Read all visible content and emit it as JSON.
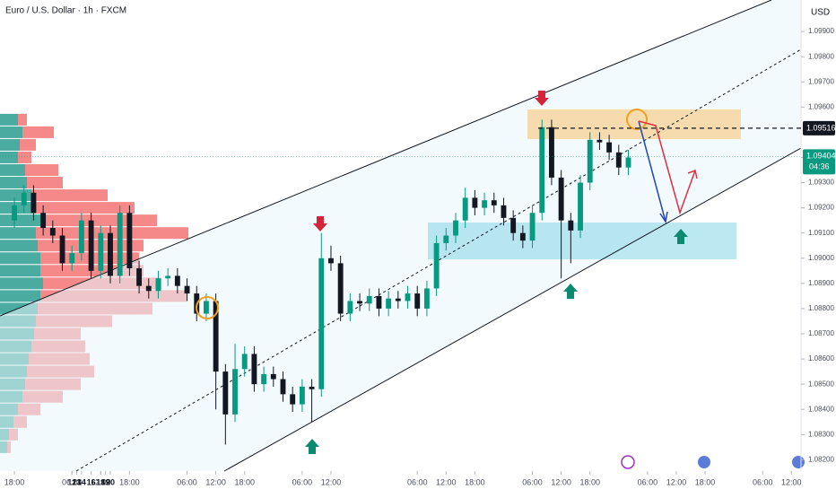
{
  "chart_data": {
    "type": "candlestick",
    "title": "Euro / U.S. Dollar · 1h · FXCM",
    "currency": "USD",
    "up_color": "#089981",
    "down_color": "#131722",
    "x": [
      0,
      2,
      4,
      6,
      8,
      10,
      12,
      14,
      16,
      18,
      20,
      22,
      24,
      26,
      28,
      30,
      32,
      34,
      36,
      38,
      40,
      42,
      44,
      46,
      48,
      50,
      52,
      54,
      56,
      58,
      60,
      62,
      64,
      66,
      68,
      70,
      72,
      74,
      76,
      78,
      80,
      82,
      84,
      86,
      88,
      90,
      92,
      94,
      96,
      98,
      100,
      102,
      104,
      106,
      108,
      110,
      112,
      114,
      116,
      118,
      120,
      122,
      124,
      126,
      128
    ],
    "open": [
      1.0915,
      1.0921,
      1.0926,
      1.0918,
      1.0912,
      1.0909,
      1.0898,
      1.0902,
      1.0915,
      1.0895,
      1.091,
      1.0893,
      1.0918,
      1.0896,
      1.0889,
      1.0887,
      1.0892,
      1.0893,
      1.0889,
      1.0886,
      1.0878,
      1.0883,
      1.0855,
      1.0838,
      1.0856,
      1.0862,
      1.085,
      1.0854,
      1.0852,
      1.0846,
      1.0842,
      1.0849,
      1.0848,
      1.09,
      1.0898,
      1.0878,
      1.0883,
      1.0882,
      1.0885,
      1.088,
      1.0884,
      1.0883,
      1.0886,
      1.088,
      1.0888,
      1.0906,
      1.0909,
      1.0915,
      1.0924,
      1.092,
      1.0923,
      1.0921,
      1.0916,
      1.091,
      1.0907,
      1.0918,
      1.0952,
      1.0932,
      1.0915,
      1.0911,
      1.093,
      1.0947,
      1.0946,
      1.0942,
      1.0936
    ],
    "high": [
      1.0924,
      1.0929,
      1.0929,
      1.0921,
      1.0915,
      1.0912,
      1.0905,
      1.0918,
      1.0918,
      1.0913,
      1.0913,
      1.0921,
      1.0921,
      1.0899,
      1.0892,
      1.0895,
      1.0896,
      1.0896,
      1.0892,
      1.0889,
      1.0886,
      1.0886,
      1.0858,
      1.0866,
      1.0865,
      1.0865,
      1.0857,
      1.0857,
      1.0855,
      1.0849,
      1.0852,
      1.0852,
      1.091,
      1.0905,
      1.0901,
      1.0886,
      1.0886,
      1.0888,
      1.0888,
      1.0887,
      1.0887,
      1.0889,
      1.0889,
      1.0891,
      1.0909,
      1.0912,
      1.0918,
      1.0928,
      1.0927,
      1.0926,
      1.0926,
      1.0924,
      1.0919,
      1.0913,
      1.0921,
      1.0955,
      1.0955,
      1.0935,
      1.0918,
      1.0933,
      1.095,
      1.095,
      1.0949,
      1.0945,
      1.0943
    ],
    "low": [
      1.0912,
      1.0918,
      1.0915,
      1.0909,
      1.0906,
      1.0895,
      1.0895,
      1.0899,
      1.0892,
      1.0892,
      1.089,
      1.089,
      1.0893,
      1.0886,
      1.0884,
      1.0884,
      1.0889,
      1.0886,
      1.0883,
      1.0875,
      1.0875,
      1.084,
      1.0826,
      1.0835,
      1.0853,
      1.0847,
      1.0847,
      1.0849,
      1.0843,
      1.0839,
      1.0839,
      1.0835,
      1.0845,
      1.0895,
      1.0875,
      1.0875,
      1.0879,
      1.0879,
      1.0877,
      1.0877,
      1.088,
      1.088,
      1.0877,
      1.0877,
      1.0885,
      1.0903,
      1.0906,
      1.0912,
      1.0917,
      1.0917,
      1.0918,
      1.0913,
      1.0907,
      1.0904,
      1.0904,
      1.0915,
      1.0929,
      1.0892,
      1.0898,
      1.0908,
      1.0927,
      1.0943,
      1.0939,
      1.0933,
      1.0933
    ],
    "close": [
      1.0921,
      1.0926,
      1.0918,
      1.0912,
      1.0909,
      1.0898,
      1.0902,
      1.0915,
      1.0895,
      1.091,
      1.0893,
      1.0918,
      1.0896,
      1.0889,
      1.0887,
      1.0892,
      1.0893,
      1.0889,
      1.0886,
      1.0878,
      1.0883,
      1.0855,
      1.0838,
      1.0856,
      1.0862,
      1.085,
      1.0854,
      1.0852,
      1.0846,
      1.0842,
      1.0849,
      1.0848,
      1.09,
      1.0898,
      1.0878,
      1.0883,
      1.0882,
      1.0885,
      1.088,
      1.0884,
      1.0883,
      1.0886,
      1.088,
      1.0888,
      1.0906,
      1.0909,
      1.0915,
      1.0924,
      1.092,
      1.0923,
      1.0921,
      1.0916,
      1.091,
      1.0907,
      1.0918,
      1.0952,
      1.0932,
      1.0915,
      1.0911,
      1.093,
      1.0947,
      1.0946,
      1.0942,
      1.0936,
      1.094
    ],
    "xlim": [
      -3,
      164
    ],
    "xticks": [
      {
        "value": 0,
        "label": "18:00"
      },
      12,
      {
        "value": 12,
        "label": "06:00"
      },
      {
        "value": 18,
        "label": "12:00"
      },
      {
        "value": 24,
        "label": "18:00"
      },
      13,
      {
        "value": 36,
        "label": "06:00"
      },
      {
        "value": 42,
        "label": "12:00"
      },
      {
        "value": 48,
        "label": "18:00"
      },
      14,
      {
        "value": 60,
        "label": "06:00"
      },
      {
        "value": 66,
        "label": "12:00"
      },
      16,
      {
        "value": 84,
        "label": "06:00"
      },
      {
        "value": 90,
        "label": "12:00"
      },
      {
        "value": 96,
        "label": "18:00"
      },
      18,
      {
        "value": 108,
        "label": "06:00"
      },
      {
        "value": 114,
        "label": "12:00"
      },
      {
        "value": 120,
        "label": "18:00"
      },
      19,
      {
        "value": 132,
        "label": "06:00"
      },
      {
        "value": 138,
        "label": "12:00"
      },
      {
        "value": 144,
        "label": "18:00"
      },
      20,
      {
        "value": 156,
        "label": "06:00"
      },
      {
        "value": 162,
        "label": "12:00"
      }
    ],
    "ylim": [
      1.08155,
      1.10025
    ],
    "yticks": [
      {
        "value": 1.099,
        "label": "1.09900"
      },
      {
        "value": 1.098,
        "label": "1.09800"
      },
      {
        "value": 1.097,
        "label": "1.09700"
      },
      {
        "value": 1.096,
        "label": "1.09600"
      },
      {
        "value": 1.094,
        "label": "1.09400"
      },
      {
        "value": 1.093,
        "label": "1.09300"
      },
      {
        "value": 1.092,
        "label": "1.09200"
      },
      {
        "value": 1.091,
        "label": "1.09100"
      },
      {
        "value": 1.09,
        "label": "1.09000"
      },
      {
        "value": 1.089,
        "label": "1.08900"
      },
      {
        "value": 1.088,
        "label": "1.08800"
      },
      {
        "value": 1.087,
        "label": "1.08700"
      },
      {
        "value": 1.086,
        "label": "1.08600"
      },
      {
        "value": 1.085,
        "label": "1.08500"
      },
      {
        "value": 1.084,
        "label": "1.08400"
      },
      {
        "value": 1.083,
        "label": "1.08300"
      },
      {
        "value": 1.082,
        "label": "1.08200"
      }
    ],
    "level_price": 1.09516,
    "last_price": 1.09404,
    "countdown": "04:36",
    "volume_profile": {
      "prices": [
        1.0955,
        1.095,
        1.0945,
        1.094,
        1.0935,
        1.093,
        1.0925,
        1.092,
        1.0915,
        1.091,
        1.0905,
        1.09,
        1.0895,
        1.089,
        1.0885,
        1.088,
        1.0875,
        1.087,
        1.0865,
        1.086,
        1.0855,
        1.085,
        1.0845,
        1.084,
        1.0835,
        1.083,
        1.0825
      ],
      "buy": [
        20,
        25,
        22,
        20,
        28,
        30,
        35,
        40,
        45,
        40,
        42,
        45,
        45,
        48,
        45,
        42,
        40,
        38,
        35,
        32,
        30,
        28,
        25,
        20,
        15,
        10,
        8
      ],
      "sell": [
        10,
        35,
        18,
        15,
        37,
        40,
        85,
        110,
        130,
        170,
        118,
        110,
        115,
        132,
        163,
        128,
        85,
        52,
        60,
        68,
        75,
        62,
        45,
        25,
        15,
        10,
        4
      ]
    }
  }
}
